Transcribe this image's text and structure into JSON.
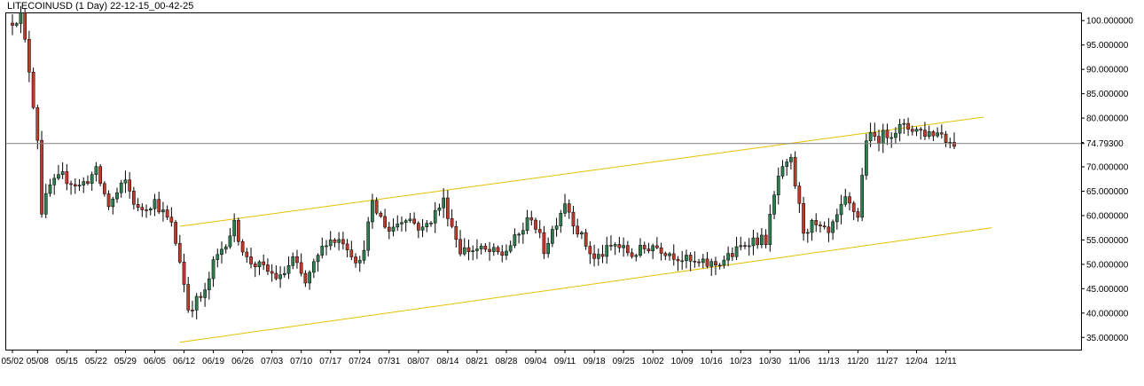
{
  "window": {
    "title": "LITECOINUSD (1 Day) 22-12-15_00-42-25"
  },
  "chart_data": {
    "type": "candlestick",
    "title": "LITECOINUSD (1 Day) 22-12-15_00-42-25",
    "symbol": "LITECOINUSD",
    "timeframe": "1 Day",
    "ylim": [
      32.5,
      101.5
    ],
    "y_ticks": [
      "100.000000",
      "95.000000",
      "90.000000",
      "85.000000",
      "80.000000",
      "75.000000",
      "70.000000",
      "65.000000",
      "60.000000",
      "55.000000",
      "50.000000",
      "45.000000",
      "40.000000",
      "35.000000"
    ],
    "current_price": "74.79300",
    "x_ticks": [
      "05/02",
      "05/08",
      "05/15",
      "05/22",
      "05/29",
      "06/05",
      "06/12",
      "06/19",
      "06/26",
      "07/03",
      "07/10",
      "07/17",
      "07/24",
      "07/31",
      "08/07",
      "08/14",
      "08/21",
      "08/28",
      "09/04",
      "09/11",
      "09/18",
      "09/25",
      "10/02",
      "10/09",
      "10/16",
      "10/23",
      "10/30",
      "11/06",
      "11/13",
      "11/20",
      "11/27",
      "12/04",
      "12/11"
    ],
    "channel_lines": [
      {
        "name": "upper",
        "start": [
          "06/11",
          57.8
        ],
        "end": [
          "12/20",
          80.2
        ]
      },
      {
        "name": "lower",
        "start": [
          "06/11",
          34.0
        ],
        "end": [
          "12/22",
          57.5
        ]
      }
    ],
    "colors": {
      "up": "#2e7d4f",
      "down": "#c0392b",
      "wick": "#000000",
      "channel": "#e5c100",
      "price_line": "#808080"
    },
    "anchors": [
      [
        "05/02",
        99.5
      ],
      [
        "05/05",
        101
      ],
      [
        "05/07",
        90
      ],
      [
        "05/09",
        76
      ],
      [
        "05/10",
        61
      ],
      [
        "05/12",
        66
      ],
      [
        "05/15",
        68
      ],
      [
        "05/19",
        66
      ],
      [
        "05/23",
        69
      ],
      [
        "05/26",
        62
      ],
      [
        "05/30",
        67
      ],
      [
        "06/02",
        61
      ],
      [
        "06/06",
        63
      ],
      [
        "06/10",
        58
      ],
      [
        "06/12",
        51
      ],
      [
        "06/14",
        41
      ],
      [
        "06/18",
        44
      ],
      [
        "06/20",
        50
      ],
      [
        "06/25",
        58
      ],
      [
        "06/28",
        51
      ],
      [
        "07/02",
        49
      ],
      [
        "07/06",
        47
      ],
      [
        "07/09",
        51
      ],
      [
        "07/12",
        46
      ],
      [
        "07/17",
        55
      ],
      [
        "07/21",
        55
      ],
      [
        "07/25",
        50
      ],
      [
        "07/28",
        62
      ],
      [
        "08/01",
        57
      ],
      [
        "08/05",
        60
      ],
      [
        "08/09",
        57
      ],
      [
        "08/14",
        63
      ],
      [
        "08/18",
        53
      ],
      [
        "08/22",
        53
      ],
      [
        "08/28",
        52
      ],
      [
        "09/01",
        56
      ],
      [
        "09/04",
        60
      ],
      [
        "09/07",
        53
      ],
      [
        "09/12",
        63
      ],
      [
        "09/15",
        57
      ],
      [
        "09/19",
        51
      ],
      [
        "09/24",
        54
      ],
      [
        "09/28",
        52
      ],
      [
        "10/03",
        54
      ],
      [
        "10/08",
        52
      ],
      [
        "10/13",
        50
      ],
      [
        "10/18",
        50
      ],
      [
        "10/22",
        52
      ],
      [
        "10/26",
        55
      ],
      [
        "10/30",
        55
      ],
      [
        "11/02",
        68
      ],
      [
        "11/05",
        71
      ],
      [
        "11/08",
        57
      ],
      [
        "11/10",
        58
      ],
      [
        "11/14",
        56
      ],
      [
        "11/18",
        63
      ],
      [
        "11/21",
        60
      ],
      [
        "11/23",
        76
      ],
      [
        "11/26",
        76
      ],
      [
        "12/01",
        78
      ],
      [
        "12/04",
        78
      ],
      [
        "12/07",
        77
      ],
      [
        "12/11",
        77
      ],
      [
        "12/13",
        75
      ]
    ]
  }
}
